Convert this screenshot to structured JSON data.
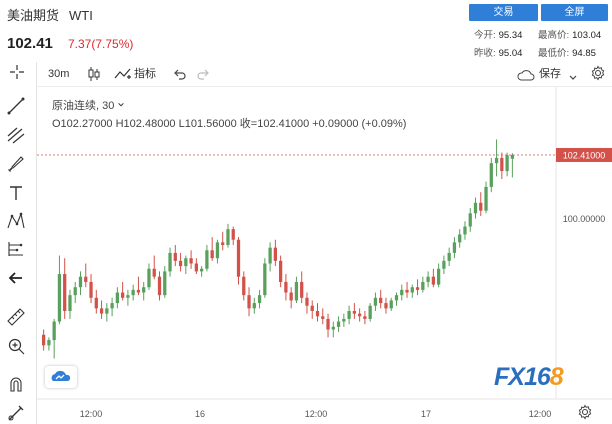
{
  "header": {
    "name": "美油期货",
    "symbol": "WTI",
    "price": "102.41",
    "change": "7.37(7.75%)",
    "trade_label": "交易",
    "fullscreen_label": "全屏",
    "stats": {
      "open_label": "今开:",
      "open": "95.34",
      "high_label": "最高价:",
      "high": "103.04",
      "prev_label": "昨收:",
      "prev": "95.04",
      "low_label": "最低价:",
      "low": "94.85"
    }
  },
  "toolbar": {
    "interval": "30m",
    "indicators_label": "指标",
    "save_label": "保存"
  },
  "legend": {
    "series_name": "原油连续",
    "series_interval": "30",
    "ohlc": "O102.27000  H102.48000  L101.56000  收=102.41000  +0.09000 (+0.09%)"
  },
  "axis": {
    "last_price_label": "102.41000",
    "level_label": "100.00000",
    "x_ticks": [
      "12:00",
      "16",
      "12:00",
      "17",
      "12:00"
    ]
  },
  "logo": {
    "text_a": "FX16",
    "text_b": "8"
  },
  "colors": {
    "up": "#58a05c",
    "down": "#d4514a",
    "accent": "#2f7fd9"
  },
  "chart_data": {
    "type": "candlestick",
    "y_labels": [
      102.41,
      100.0
    ],
    "candles": [
      [
        95.6,
        95.8,
        95.0,
        95.2
      ],
      [
        95.2,
        95.5,
        95.0,
        95.4
      ],
      [
        95.4,
        96.2,
        94.7,
        96.1
      ],
      [
        96.1,
        98.6,
        96.0,
        97.9
      ],
      [
        97.9,
        98.5,
        96.2,
        96.5
      ],
      [
        96.5,
        97.3,
        96.2,
        97.1
      ],
      [
        97.1,
        97.6,
        96.8,
        97.4
      ],
      [
        97.4,
        98.0,
        97.1,
        97.8
      ],
      [
        97.8,
        98.3,
        97.4,
        97.6
      ],
      [
        97.6,
        97.9,
        96.8,
        97.0
      ],
      [
        97.0,
        97.3,
        96.4,
        96.6
      ],
      [
        96.6,
        96.9,
        96.2,
        96.4
      ],
      [
        96.4,
        96.8,
        96.1,
        96.6
      ],
      [
        96.6,
        97.0,
        96.3,
        96.8
      ],
      [
        96.8,
        97.4,
        96.6,
        97.2
      ],
      [
        97.2,
        97.6,
        96.9,
        97.0
      ],
      [
        97.0,
        97.3,
        96.7,
        97.1
      ],
      [
        97.1,
        97.5,
        96.9,
        97.3
      ],
      [
        97.3,
        97.8,
        97.1,
        97.2
      ],
      [
        97.2,
        97.6,
        96.9,
        97.4
      ],
      [
        97.4,
        98.3,
        97.3,
        98.1
      ],
      [
        98.1,
        98.6,
        97.7,
        97.8
      ],
      [
        97.8,
        98.0,
        96.9,
        97.1
      ],
      [
        97.1,
        98.2,
        97.0,
        98.0
      ],
      [
        98.0,
        98.9,
        97.8,
        98.7
      ],
      [
        98.7,
        99.0,
        98.2,
        98.4
      ],
      [
        98.4,
        98.7,
        98.0,
        98.2
      ],
      [
        98.2,
        98.6,
        97.9,
        98.5
      ],
      [
        98.5,
        98.8,
        98.1,
        98.3
      ],
      [
        98.3,
        98.5,
        97.9,
        98.0
      ],
      [
        98.0,
        98.2,
        97.8,
        98.1
      ],
      [
        98.1,
        99.0,
        98.0,
        98.8
      ],
      [
        98.8,
        99.3,
        98.4,
        98.5
      ],
      [
        98.5,
        99.2,
        98.3,
        99.1
      ],
      [
        99.1,
        99.5,
        98.8,
        99.0
      ],
      [
        99.0,
        99.8,
        98.9,
        99.6
      ],
      [
        99.6,
        99.7,
        99.0,
        99.2
      ],
      [
        99.2,
        99.3,
        97.5,
        97.8
      ],
      [
        97.8,
        98.0,
        96.9,
        97.1
      ],
      [
        97.1,
        97.4,
        96.3,
        96.6
      ],
      [
        96.6,
        97.0,
        96.4,
        96.8
      ],
      [
        96.8,
        97.3,
        96.6,
        97.1
      ],
      [
        97.1,
        98.5,
        97.0,
        98.3
      ],
      [
        98.3,
        99.1,
        98.0,
        98.9
      ],
      [
        98.9,
        99.2,
        98.2,
        98.4
      ],
      [
        98.4,
        98.6,
        97.4,
        97.6
      ],
      [
        97.6,
        97.9,
        96.9,
        97.2
      ],
      [
        97.2,
        97.4,
        96.6,
        96.9
      ],
      [
        96.9,
        97.8,
        96.8,
        97.6
      ],
      [
        97.6,
        98.0,
        96.8,
        97.0
      ],
      [
        97.0,
        97.2,
        96.4,
        96.7
      ],
      [
        96.7,
        96.9,
        96.2,
        96.5
      ],
      [
        96.5,
        96.8,
        96.1,
        96.3
      ],
      [
        96.3,
        96.6,
        96.0,
        96.2
      ],
      [
        96.2,
        96.4,
        95.5,
        95.8
      ],
      [
        95.8,
        96.1,
        95.5,
        95.9
      ],
      [
        95.9,
        96.3,
        95.7,
        96.1
      ],
      [
        96.1,
        96.4,
        95.9,
        96.2
      ],
      [
        96.2,
        96.7,
        96.0,
        96.5
      ],
      [
        96.5,
        96.8,
        96.2,
        96.4
      ],
      [
        96.4,
        96.6,
        96.1,
        96.3
      ],
      [
        96.3,
        96.5,
        96.0,
        96.2
      ],
      [
        96.2,
        96.8,
        96.1,
        96.7
      ],
      [
        96.7,
        97.2,
        96.5,
        97.0
      ],
      [
        97.0,
        97.3,
        96.6,
        96.8
      ],
      [
        96.8,
        97.0,
        96.4,
        96.6
      ],
      [
        96.6,
        97.0,
        96.5,
        96.9
      ],
      [
        96.9,
        97.2,
        96.7,
        97.1
      ],
      [
        97.1,
        97.5,
        96.9,
        97.3
      ],
      [
        97.3,
        97.6,
        97.0,
        97.2
      ],
      [
        97.2,
        97.5,
        97.0,
        97.4
      ],
      [
        97.4,
        97.7,
        97.1,
        97.3
      ],
      [
        97.3,
        97.8,
        97.2,
        97.6
      ],
      [
        97.6,
        98.0,
        97.4,
        97.8
      ],
      [
        97.8,
        98.1,
        97.4,
        97.5
      ],
      [
        97.5,
        98.3,
        97.4,
        98.1
      ],
      [
        98.1,
        98.6,
        97.9,
        98.4
      ],
      [
        98.4,
        98.9,
        98.2,
        98.7
      ],
      [
        98.7,
        99.3,
        98.5,
        99.1
      ],
      [
        99.1,
        99.6,
        98.9,
        99.4
      ],
      [
        99.4,
        99.9,
        99.2,
        99.7
      ],
      [
        99.7,
        100.4,
        99.5,
        100.2
      ],
      [
        100.2,
        100.8,
        100.0,
        100.6
      ],
      [
        100.6,
        101.0,
        100.1,
        100.3
      ],
      [
        100.3,
        101.4,
        100.2,
        101.2
      ],
      [
        101.2,
        102.3,
        101.0,
        102.1
      ],
      [
        102.1,
        103.0,
        101.6,
        102.3
      ],
      [
        102.3,
        102.5,
        101.5,
        101.8
      ],
      [
        101.8,
        102.5,
        101.6,
        102.4
      ],
      [
        102.27,
        102.48,
        101.56,
        102.41
      ]
    ]
  }
}
